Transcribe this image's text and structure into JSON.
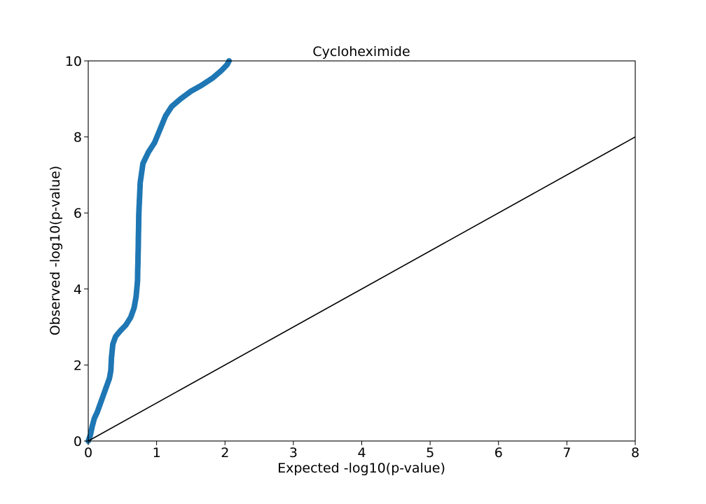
{
  "chart_data": {
    "type": "scatter",
    "title": "Cycloheximide",
    "xlabel": "Expected -log10(p-value)",
    "ylabel": "Observed -log10(p-value)",
    "xlim": [
      0,
      8
    ],
    "ylim": [
      0,
      10
    ],
    "x_ticks": [
      "0",
      "1",
      "2",
      "3",
      "4",
      "5",
      "6",
      "7",
      "8"
    ],
    "y_ticks": [
      "0",
      "2",
      "4",
      "6",
      "8",
      "10"
    ],
    "grid": false,
    "legend": "none",
    "colors": {
      "points": "#1f77b4",
      "reference_line": "#000000"
    },
    "series": [
      {
        "values": [
          [
            0.0,
            0.0
          ],
          [
            0.03,
            0.15
          ],
          [
            0.06,
            0.4
          ],
          [
            0.09,
            0.6
          ],
          [
            0.13,
            0.75
          ],
          [
            0.17,
            0.95
          ],
          [
            0.22,
            1.2
          ],
          [
            0.27,
            1.45
          ],
          [
            0.31,
            1.65
          ],
          [
            0.33,
            1.85
          ],
          [
            0.34,
            2.2
          ],
          [
            0.36,
            2.55
          ],
          [
            0.4,
            2.75
          ],
          [
            0.47,
            2.9
          ],
          [
            0.55,
            3.05
          ],
          [
            0.62,
            3.25
          ],
          [
            0.67,
            3.5
          ],
          [
            0.7,
            3.8
          ],
          [
            0.72,
            4.2
          ],
          [
            0.73,
            5.0
          ],
          [
            0.74,
            6.0
          ],
          [
            0.76,
            6.8
          ],
          [
            0.8,
            7.3
          ],
          [
            0.88,
            7.6
          ],
          [
            0.97,
            7.85
          ],
          [
            1.05,
            8.2
          ],
          [
            1.13,
            8.55
          ],
          [
            1.22,
            8.8
          ],
          [
            1.35,
            9.0
          ],
          [
            1.5,
            9.2
          ],
          [
            1.65,
            9.35
          ],
          [
            1.82,
            9.55
          ],
          [
            1.95,
            9.75
          ],
          [
            2.03,
            9.9
          ],
          [
            2.06,
            10.0
          ]
        ]
      },
      {
        "kind": "reference-line",
        "values": [
          [
            0,
            0
          ],
          [
            8,
            8
          ]
        ]
      }
    ]
  }
}
